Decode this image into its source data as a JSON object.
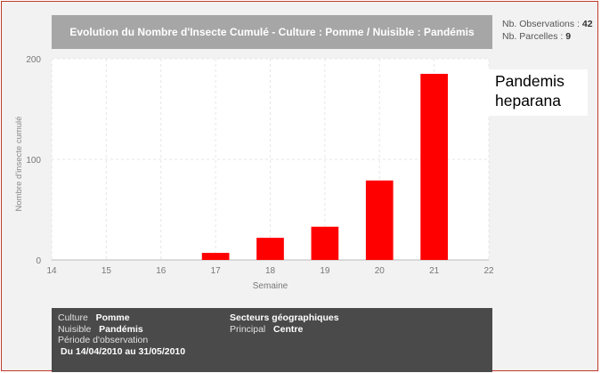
{
  "title": "Evolution du Nombre d'Insecte Cumulé - Culture : Pomme / Nuisible : Pandémis",
  "stats": {
    "observations_label": "Nb. Observations :",
    "observations_value": "42",
    "parcelles_label": "Nb. Parcelles :",
    "parcelles_value": "9"
  },
  "species_label": {
    "line1": "Pandemis",
    "line2": "heparana"
  },
  "chart_data": {
    "type": "bar",
    "x": [
      17,
      18,
      19,
      20,
      21
    ],
    "values": [
      7,
      22,
      33,
      79,
      185
    ],
    "xlabel": "Semaine",
    "ylabel": "Nombre d'insecte cumulé",
    "xlim": [
      14,
      22
    ],
    "ylim": [
      0,
      200
    ],
    "xticks": [
      14,
      15,
      16,
      17,
      18,
      19,
      20,
      21,
      22
    ],
    "yticks": [
      0,
      100,
      200
    ],
    "grid": true,
    "bar_color": "#ff0000"
  },
  "info": {
    "culture_label": "Culture",
    "culture_value": "Pomme",
    "nuisible_label": "Nuisible",
    "nuisible_value": "Pandémis",
    "period_label": "Période d'observation",
    "period_value": "Du 14/04/2010 au 31/05/2010",
    "sectors_label": "Secteurs géographiques",
    "principal_label": "Principal",
    "principal_value": "Centre"
  }
}
